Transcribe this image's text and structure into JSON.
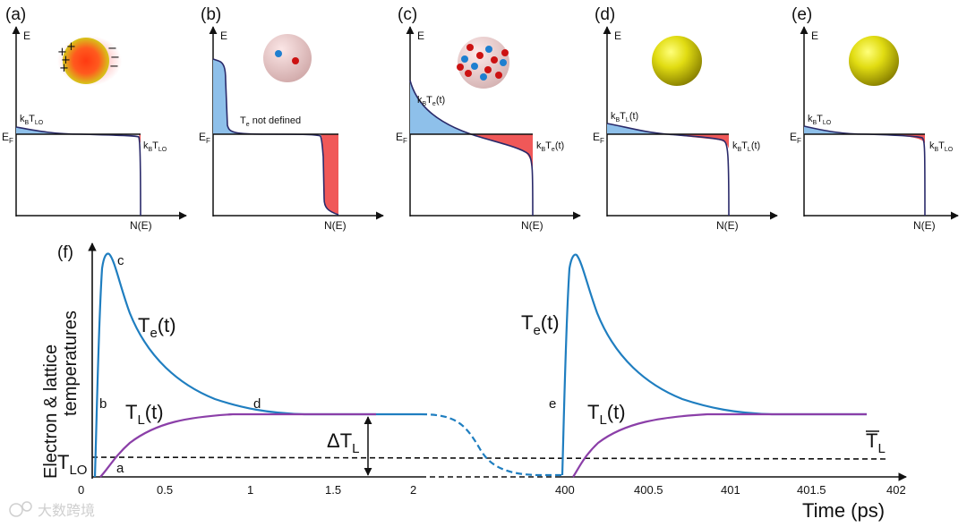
{
  "panels": [
    {
      "id": "a",
      "label": "(a)",
      "e_axis": "E",
      "fermi": "E_F",
      "n_axis": "N(E)",
      "temp_left": "k_B T_LO",
      "temp_right": "k_B T_LO",
      "charges_plus": "+ + + +",
      "charges_minus": "− − − −"
    },
    {
      "id": "b",
      "label": "(b)",
      "e_axis": "E",
      "fermi": "E_F",
      "n_axis": "N(E)",
      "note": "T_e not defined"
    },
    {
      "id": "c",
      "label": "(c)",
      "e_axis": "E",
      "fermi": "E_F",
      "n_axis": "N(E)",
      "temp_left": "k_B T_e(t)",
      "temp_right": "k_B T_e(t)"
    },
    {
      "id": "d",
      "label": "(d)",
      "e_axis": "E",
      "fermi": "E_F",
      "n_axis": "N(E)",
      "temp_left": "k_B T_L(t)",
      "temp_right": "k_B T_L(t)"
    },
    {
      "id": "e",
      "label": "(e)",
      "e_axis": "E",
      "fermi": "E_F",
      "n_axis": "N(E)",
      "temp_left": "k_B T_LO",
      "temp_right": "k_B T_LO"
    }
  ],
  "main_plot": {
    "label": "(f)",
    "ylabel_line1": "Electron & lattice",
    "ylabel_line2": "temperatures",
    "xlabel": "Time (ps)",
    "ticks_left": [
      "0",
      "0.5",
      "1",
      "1.5",
      "2"
    ],
    "ticks_right": [
      "400",
      "400.5",
      "401",
      "401.5",
      "402"
    ],
    "curve_te_left": "T_e(t)",
    "curve_tl_left": "T_L(t)",
    "curve_te_right": "T_e(t)",
    "curve_tl_right": "T_L(t)",
    "point_a": "a",
    "point_b": "b",
    "point_c": "c",
    "point_d": "d",
    "point_e": "e",
    "t_lo": "T_LO",
    "delta_tl": "ΔT_L",
    "tl_bar": "T̄_L"
  },
  "colors": {
    "electron": "#1f7ec0",
    "lattice": "#8b3fa8",
    "fill_blue": "#8ec0ea",
    "fill_red": "#f05858"
  },
  "watermark": "大数跨境"
}
